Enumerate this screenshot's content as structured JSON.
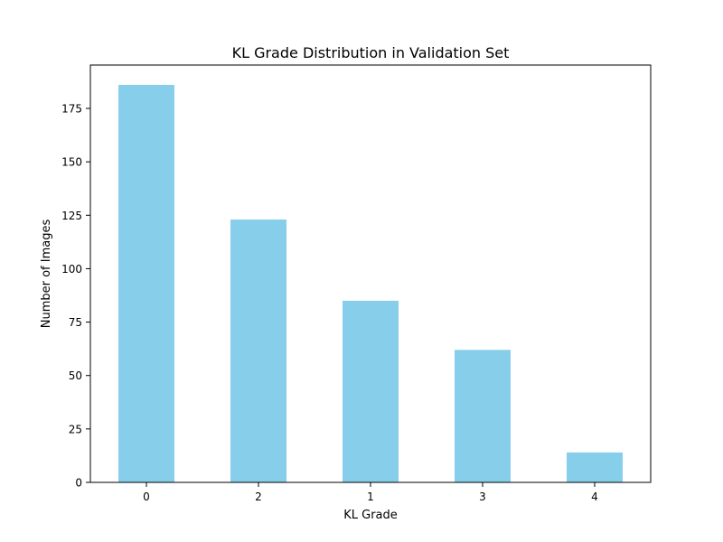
{
  "chart_data": {
    "type": "bar",
    "title": "KL Grade Distribution in Validation Set",
    "xlabel": "KL Grade",
    "ylabel": "Number of Images",
    "categories": [
      "0",
      "2",
      "1",
      "3",
      "4"
    ],
    "values": [
      186,
      123,
      85,
      62,
      14
    ],
    "ylim": [
      0,
      195.3
    ],
    "yticks": [
      0,
      25,
      50,
      75,
      100,
      125,
      150,
      175
    ],
    "grid": false,
    "bar_color": "#87ceeb"
  }
}
